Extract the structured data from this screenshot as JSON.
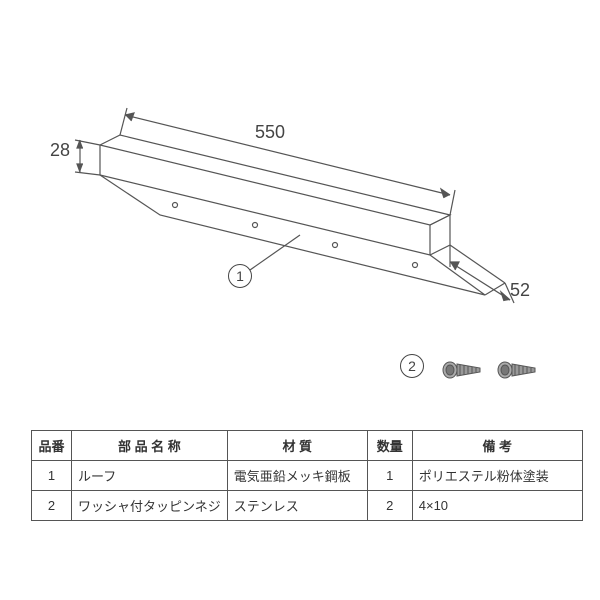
{
  "drawing": {
    "line_color": "#555555",
    "line_width": 1.2,
    "dims": {
      "length": "550",
      "height": "28",
      "width": "52"
    },
    "balloon1": "1",
    "balloon2": "2"
  },
  "screws": {
    "fill": "#888888",
    "stroke": "#555555"
  },
  "table": {
    "headers": {
      "no": "品番",
      "name": "部 品 名 称",
      "material": "材 質",
      "qty": "数量",
      "note": "備 考"
    },
    "col_widths": {
      "no": 40,
      "name": 140,
      "material": 140,
      "qty": 45,
      "note": 170
    },
    "rows": [
      {
        "no": "1",
        "name": "ルーフ",
        "material": "電気亜鉛メッキ鋼板",
        "qty": "1",
        "note": "ポリエステル粉体塗装"
      },
      {
        "no": "2",
        "name": "ワッシャ付タッピンネジ",
        "material": "ステンレス",
        "qty": "2",
        "note": "4×10"
      }
    ]
  }
}
